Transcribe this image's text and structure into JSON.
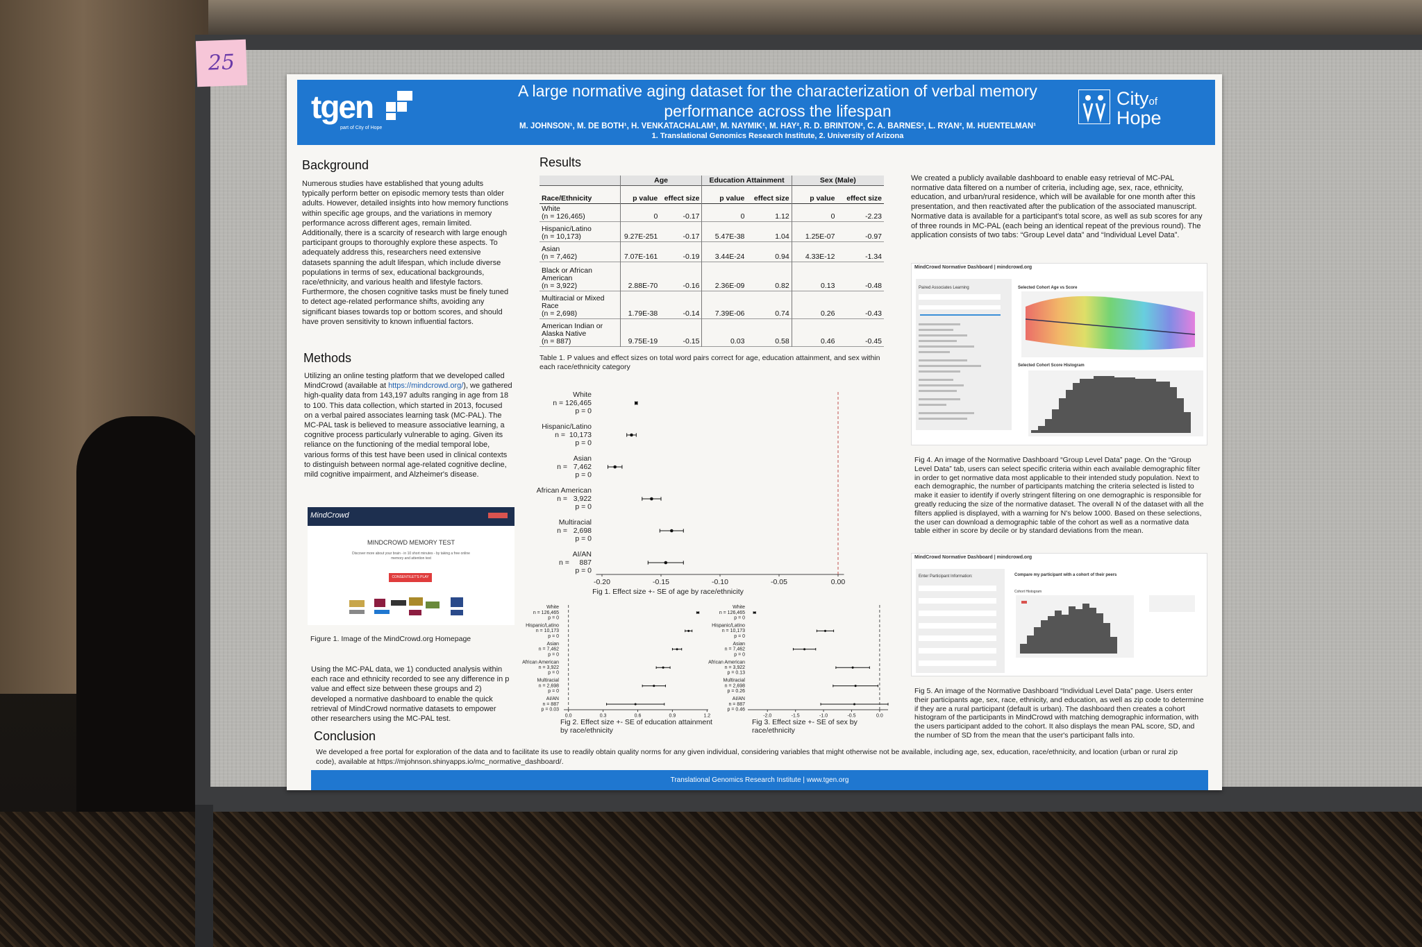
{
  "sticker": "25",
  "header": {
    "logo_left": "tgen",
    "logo_left_sub": "part of City of Hope",
    "title_line1": "A large normative aging dataset for the characterization of verbal memory",
    "title_line2": "performance across the lifespan",
    "authors": "M. JOHNSON¹, M. DE BOTH¹, H. VENKATACHALAM¹, M. NAYMIK¹, M. HAY², R. D. BRINTON², C. A. BARNES², L. RYAN², M. HUENTELMAN¹",
    "affiliations": "1. Translational Genomics Research Institute, 2. University of Arizona",
    "logo_right_1": "City",
    "logo_right_2": "of",
    "logo_right_3": "Hope"
  },
  "background": {
    "heading": "Background",
    "text": "Numerous studies have established that young adults typically perform better on episodic memory tests than older adults. However, detailed insights into how memory functions within specific age groups, and the variations in memory performance across different ages, remain limited. Additionally, there is a scarcity of research with large enough participant groups to thoroughly explore these aspects. To adequately address this, researchers need extensive datasets spanning the adult lifespan, which include diverse populations in terms of sex, educational backgrounds, race/ethnicity, and various health and lifestyle factors. Furthermore, the chosen cognitive tasks must be finely tuned to detect age-related performance shifts, avoiding any significant biases towards top or bottom scores, and should have proven sensitivity to known influential factors."
  },
  "methods": {
    "heading": "Methods",
    "text_before_link": "Utilizing an online testing platform that we developed called MindCrowd (available at ",
    "link": "https://mindcrowd.org/",
    "text_after_link": "), we gathered high-quality data from 143,197 adults ranging in age from 18 to 100. This data collection, which started in 2013, focused on a verbal paired associates learning task (MC-PAL). The MC-PAL task is believed to measure associative learning, a cognitive process particularly vulnerable to aging. Given its reliance on the functioning of the medial temporal lobe, various forms of this test have been used in clinical contexts to distinguish between normal age-related cognitive decline, mild cognitive impairment, and Alzheimer's disease.",
    "text2": "Using the MC-PAL data, we 1) conducted analysis within each race and ethnicity recorded to see any difference in p value and effect size between these groups and 2) developed a normative dashboard to enable the quick retrieval of MindCrowd normative datasets to empower other researchers using the MC-PAL test."
  },
  "figure1": {
    "brand": "MindCrowd",
    "heading": "MINDCROWD MEMORY TEST",
    "subtext": "Discover more about your brain - in 10 short minutes - by taking a free online memory and attention test",
    "button": "CONSENT/LET'S PLAY",
    "caption": "Figure 1. Image of the MindCrowd.org Homepage"
  },
  "results": {
    "heading": "Results",
    "table": {
      "groups": [
        "Age",
        "Education Attainment",
        "Sex (Male)"
      ],
      "columns": [
        "Race/Ethnicity",
        "p value",
        "effect size",
        "p value",
        "effect size",
        "p value",
        "effect size"
      ],
      "rows": [
        {
          "group": "White",
          "n": "(n = 126,465)",
          "cells": [
            "0",
            "-0.17",
            "0",
            "1.12",
            "0",
            "-2.23"
          ]
        },
        {
          "group": "Hispanic/Latino",
          "n": "(n = 10,173)",
          "cells": [
            "9.27E-251",
            "-0.17",
            "5.47E-38",
            "1.04",
            "1.25E-07",
            "-0.97"
          ]
        },
        {
          "group": "Asian",
          "n": "(n = 7,462)",
          "cells": [
            "7.07E-161",
            "-0.19",
            "3.44E-24",
            "0.94",
            "4.33E-12",
            "-1.34"
          ]
        },
        {
          "group": "Black or African American",
          "n": "(n = 3,922)",
          "cells": [
            "2.88E-70",
            "-0.16",
            "2.36E-09",
            "0.82",
            "0.13",
            "-0.48"
          ]
        },
        {
          "group": "Multiracial or Mixed Race",
          "n": "(n = 2,698)",
          "cells": [
            "1.79E-38",
            "-0.14",
            "7.39E-06",
            "0.74",
            "0.26",
            "-0.43"
          ]
        },
        {
          "group": "American Indian or Alaska Native",
          "n": "(n = 887)",
          "cells": [
            "9.75E-19",
            "-0.15",
            "0.03",
            "0.58",
            "0.46",
            "-0.45"
          ]
        }
      ]
    },
    "table_caption": "Table 1. P values and effect sizes on total word pairs correct for age, education attainment, and sex within each race/ethnicity category"
  },
  "chart_data": [
    {
      "type": "forest",
      "caption": "Fig 1. Effect size +- SE of age by race/ethnicity",
      "categories": [
        "White",
        "Hispanic/Latino",
        "Asian",
        "African American",
        "Multiracial",
        "AI/AN"
      ],
      "n_labels": [
        "n = 126,465",
        "n =  10,173",
        "n =   7,462",
        "n =   3,922",
        "n =   2,698",
        "n =     887"
      ],
      "p_labels": [
        "p = 0",
        "p = 0",
        "p = 0",
        "p = 0",
        "p = 0",
        "p = 0"
      ],
      "values": [
        -0.171,
        -0.175,
        -0.189,
        -0.158,
        -0.141,
        -0.146
      ],
      "errors": [
        0.001,
        0.004,
        0.006,
        0.008,
        0.01,
        0.015
      ],
      "color": "#111111",
      "xlim": [
        -0.205,
        0.005
      ],
      "xticks": [
        {
          "value": -0.2,
          "label": "-0.20"
        },
        -0.15,
        {
          "value": -0.1,
          "label": "-0.10"
        },
        -0.05,
        {
          "value": 0,
          "label": "0.00"
        }
      ],
      "ref_line": 0,
      "ref_line_color": "#c0504d"
    },
    {
      "type": "forest",
      "caption": "Fig 2. Effect size +- SE of education attainment by race/ethnicity",
      "categories": [
        "White",
        "Hispanic/Latino",
        "Asian",
        "African American",
        "Multiracial",
        "AI/AN"
      ],
      "n_labels": [
        "n = 126,465",
        "n = 10,173",
        "n = 7,462",
        "n = 3,922",
        "n = 2,698",
        "n = 887"
      ],
      "p_labels": [
        "p = 0",
        "p = 0",
        "p = 0",
        "p = 0",
        "p = 0",
        "p = 0.03"
      ],
      "values": [
        1.12,
        1.04,
        0.94,
        0.82,
        0.74,
        0.58
      ],
      "errors": [
        0.01,
        0.03,
        0.04,
        0.06,
        0.1,
        0.25
      ],
      "color": "#111111",
      "xlim": [
        -0.04,
        1.21
      ],
      "xticks": [
        {
          "value": 0,
          "label": "0.0"
        },
        0.3,
        0.6,
        0.9,
        1.2
      ],
      "ref_line": 0,
      "ref_line_color": "#555555"
    },
    {
      "type": "forest",
      "caption": "Fig 3. Effect size +- SE of sex by race/ethnicity",
      "categories": [
        "White",
        "Hispanic/Latino",
        "Asian",
        "African American",
        "Multiracial",
        "AI/AN"
      ],
      "n_labels": [
        "n = 126,465",
        "n = 10,173",
        "n = 7,462",
        "n = 3,922",
        "n = 2,698",
        "n = 887"
      ],
      "p_labels": [
        "p = 0",
        "p = 0",
        "p = 0",
        "p = 0.13",
        "p = 0.26",
        "p = 0.46"
      ],
      "values": [
        -2.23,
        -0.97,
        -1.34,
        -0.48,
        -0.43,
        -0.45
      ],
      "errors": [
        0.02,
        0.15,
        0.2,
        0.3,
        0.4,
        0.6
      ],
      "color": "#111111",
      "xlim": [
        -2.35,
        0.15
      ],
      "xticks": [
        {
          "value": -2,
          "label": "-2.0"
        },
        -1.5,
        {
          "value": -1,
          "label": "-1.0"
        },
        -0.5,
        {
          "value": 0,
          "label": "0.0"
        }
      ],
      "ref_line": 0,
      "ref_line_color": "#555555"
    }
  ],
  "dashboard": {
    "intro": "We created a publicly available dashboard to enable easy retrieval of MC-PAL normative data filtered on a number of criteria, including age, sex, race, ethnicity, education, and urban/rural residence, which will be available for one month after this presentation, and then reactivated after the publication of the associated manuscript. Normative data is available for a participant's total score, as well as sub scores for any of three rounds in MC-PAL (each being an identical repeat of the previous round). The application consists of two tabs: “Group Level data” and “Individual Level Data”.",
    "fig4": {
      "title": "MindCrowd Normative Dashboard | mindcrowd.org",
      "panel": "Paired Associates Learning",
      "plot1": "Selected Cohort Age vs Score",
      "plot2": "Selected Cohort Score Histogram",
      "caption": "Fig 4. An image of the Normative Dashboard “Group Level Data” page. On the “Group Level Data” tab, users can select specific criteria within each available demographic filter in order to get normative data most applicable to their intended study population. Next to each demographic, the number of participants matching the criteria selected is listed to make it easier to identify if overly stringent filtering on one demographic is responsible for greatly reducing the size of the normative dataset. The overall N of the dataset with all the filters applied is displayed, with a warning for N's below 1000. Based on these selections, the user can download a demographic table of the cohort as well as a normative data table either in score by decile or by standard deviations from the mean."
    },
    "fig5": {
      "title": "MindCrowd Normative Dashboard | mindcrowd.org",
      "panel": "Enter Participant Information:",
      "plot1": "Compare my participant with a cohort of their peers",
      "plot2": "Cohort Histogram",
      "caption": "Fig 5. An image of the Normative Dashboard “Individual Level Data” page. Users enter their participants age, sex, race, ethnicity, and education, as well as zip code to determine if they are a rural participant (default is urban). The dashboard then creates a cohort histogram of the participants in MindCrowd with matching demographic information, with the users participant added to the cohort. It also displays the mean PAL score, SD, and the number of SD from the mean that the user's participant falls into."
    }
  },
  "conclusion": {
    "heading": "Conclusion",
    "text": "We developed a free portal for exploration of the data and to facilitate its use to readily obtain quality norms for any given individual, considering variables that might otherwise not be available, including age, sex, education, race/ethnicity, and location (urban or rural zip code), available at https://mjohnson.shinyapps.io/mc_normative_dashboard/."
  },
  "footer": "Translational Genomics Research Institute  |  www.tgen.org"
}
